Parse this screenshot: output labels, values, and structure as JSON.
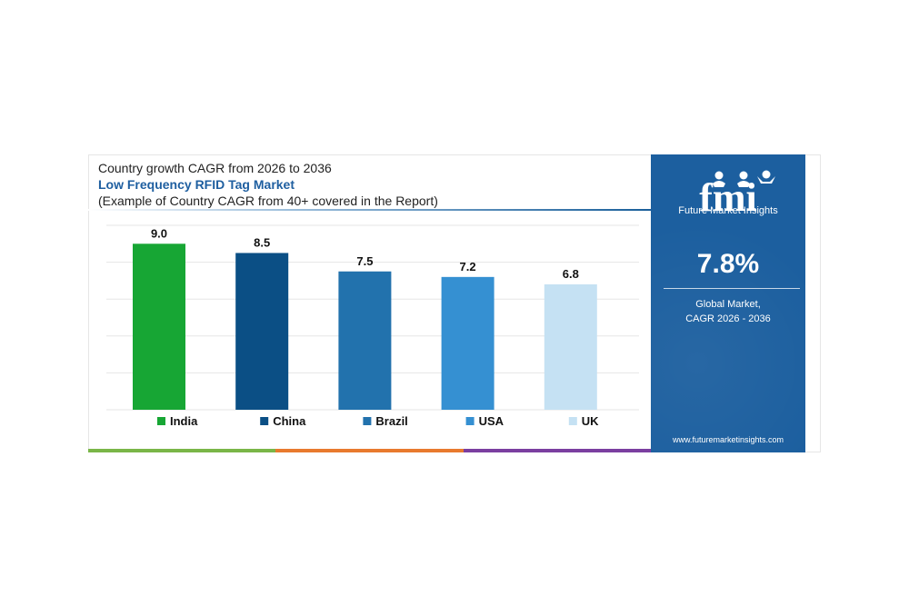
{
  "header": {
    "subtitle": "Country growth CAGR from 2026 to 2036",
    "title": "Low Frequency RFID Tag Market",
    "note": "(Example of Country CAGR from 40+ covered in the Report)"
  },
  "sidebar": {
    "logo_text": "fmi",
    "brand_name": "Future Market Insights",
    "kpi_value": "7.8%",
    "kpi_label_line1": "Global Market,",
    "kpi_label_line2": "CAGR 2026 - 2036",
    "website": "www.futuremarketinsights.com",
    "background_color": "#1c5f9f"
  },
  "bottom_strip_colors": [
    "#7ab648",
    "#e87a2e",
    "#7b3fa0"
  ],
  "chart_data": {
    "type": "bar",
    "categories": [
      "India",
      "China",
      "Brazil",
      "USA",
      "UK"
    ],
    "values": [
      9.0,
      8.5,
      7.5,
      7.2,
      6.8
    ],
    "value_labels": [
      "9.0",
      "8.5",
      "7.5",
      "7.2",
      "6.8"
    ],
    "colors": [
      "#17a634",
      "#0b4f85",
      "#2272ad",
      "#3590d2",
      "#c5e1f3"
    ],
    "ylim": [
      0,
      10
    ],
    "grid": true,
    "legend_position": "bottom",
    "title": "",
    "xlabel": "",
    "ylabel": ""
  }
}
